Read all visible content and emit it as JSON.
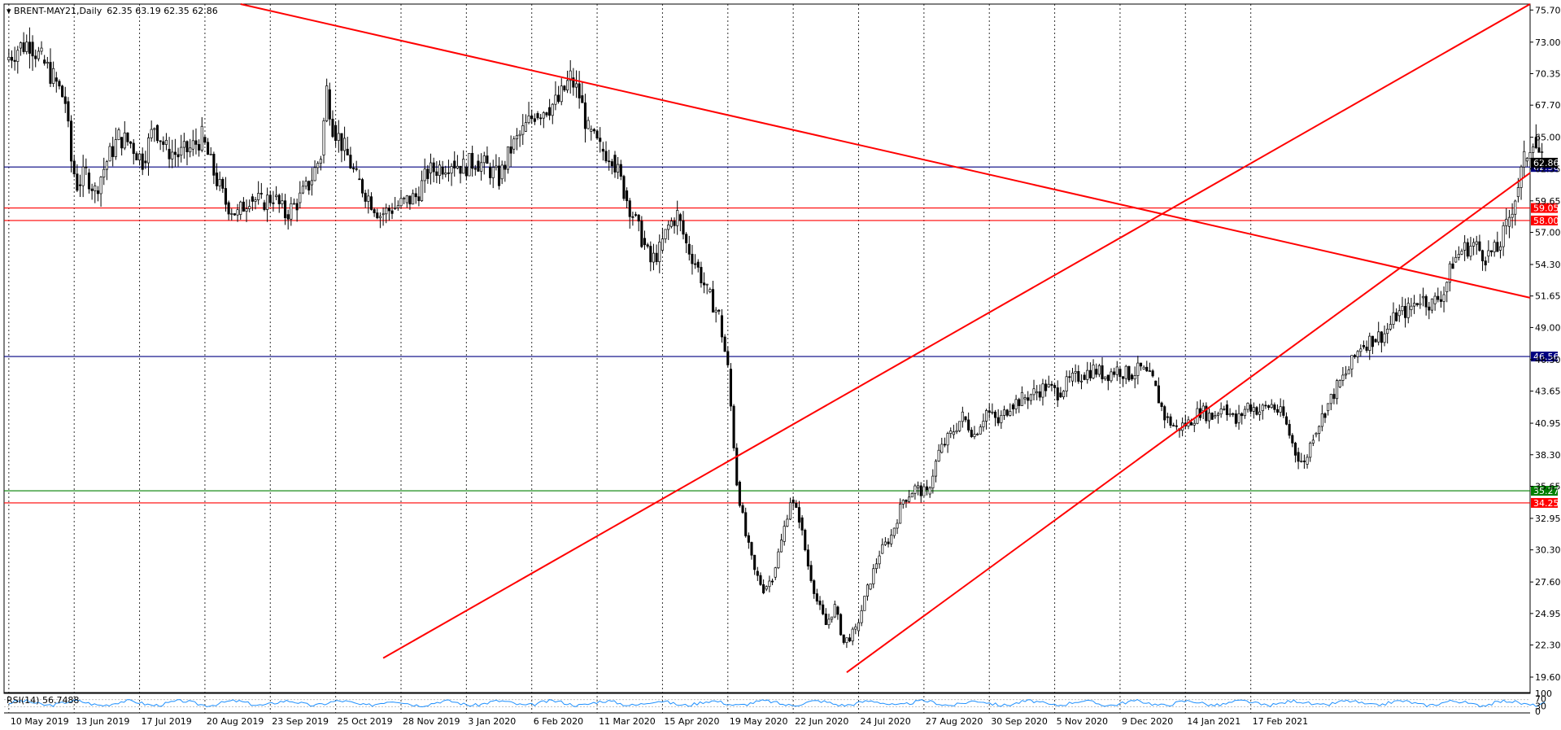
{
  "header": {
    "symbol": "BRENT-MAY21,Daily",
    "ohlc": "62.35 63.19 62.35 62.86"
  },
  "colors": {
    "background": "#ffffff",
    "candle": "#000000",
    "grid": "#000000",
    "trendline": "#ff0000",
    "blue_level": "#000080",
    "red_level": "#ff0000",
    "green_level": "#008000",
    "rsi_line": "#1e90ff"
  },
  "chart_data": {
    "type": "candlestick",
    "price_range": [
      18.3,
      76.2
    ],
    "y_ticks": [
      "75.70",
      "73.00",
      "70.35",
      "67.70",
      "65.00",
      "62.35",
      "59.65",
      "57.00",
      "54.30",
      "51.65",
      "49.00",
      "46.30",
      "43.65",
      "40.95",
      "38.30",
      "35.65",
      "32.95",
      "30.30",
      "27.60",
      "24.95",
      "22.30",
      "19.60"
    ],
    "x_labels": [
      "10 May 2019",
      "13 Jun 2019",
      "17 Jul 2019",
      "20 Aug 2019",
      "23 Sep 2019",
      "25 Oct 2019",
      "28 Nov 2019",
      "3 Jan 2020",
      "6 Feb 2020",
      "11 Mar 2020",
      "15 Apr 2020",
      "19 May 2020",
      "22 Jun 2020",
      "24 Jul 2020",
      "27 Aug 2020",
      "30 Sep 2020",
      "5 Nov 2020",
      "9 Dec 2020",
      "14 Jan 2021",
      "17 Feb 2021"
    ],
    "x_label_months": [
      0,
      1.1,
      2.2,
      3.3,
      4.4,
      5.5,
      6.6,
      7.7,
      8.8,
      9.9,
      11.0,
      12.1,
      13.2,
      14.3,
      15.4,
      16.5,
      17.6,
      18.7,
      19.8,
      20.9
    ],
    "x_range_months": [
      -0.08,
      25.6
    ],
    "closes": [
      [
        0,
        71.5
      ],
      [
        0.2,
        72.5
      ],
      [
        0.4,
        73.0
      ],
      [
        0.6,
        71.5
      ],
      [
        0.8,
        70.0
      ],
      [
        1.0,
        68.0
      ],
      [
        1.1,
        63.0
      ],
      [
        1.2,
        61.0
      ],
      [
        1.35,
        62.0
      ],
      [
        1.5,
        60.5
      ],
      [
        1.7,
        63.0
      ],
      [
        1.9,
        65.0
      ],
      [
        2.1,
        64.5
      ],
      [
        2.3,
        63.0
      ],
      [
        2.5,
        66.0
      ],
      [
        2.7,
        64.0
      ],
      [
        2.9,
        63.5
      ],
      [
        3.1,
        64.0
      ],
      [
        3.3,
        65.0
      ],
      [
        3.5,
        62.0
      ],
      [
        3.7,
        59.5
      ],
      [
        3.9,
        58.5
      ],
      [
        4.1,
        60.0
      ],
      [
        4.3,
        59.5
      ],
      [
        4.5,
        60.0
      ],
      [
        4.7,
        58.5
      ],
      [
        4.9,
        59.5
      ],
      [
        5.1,
        61.0
      ],
      [
        5.3,
        63.5
      ],
      [
        5.4,
        69.0
      ],
      [
        5.5,
        66.0
      ],
      [
        5.7,
        64.0
      ],
      [
        5.9,
        61.5
      ],
      [
        6.1,
        60.0
      ],
      [
        6.3,
        58.5
      ],
      [
        6.5,
        59.0
      ],
      [
        6.7,
        59.5
      ],
      [
        6.9,
        60.0
      ],
      [
        7.1,
        62.0
      ],
      [
        7.3,
        62.5
      ],
      [
        7.5,
        63.0
      ],
      [
        7.7,
        62.5
      ],
      [
        7.9,
        63.0
      ],
      [
        8.1,
        62.5
      ],
      [
        8.3,
        61.5
      ],
      [
        8.5,
        64.0
      ],
      [
        8.7,
        65.5
      ],
      [
        8.9,
        67.0
      ],
      [
        9.1,
        67.5
      ],
      [
        9.3,
        68.0
      ],
      [
        9.5,
        70.0
      ],
      [
        9.65,
        68.5
      ],
      [
        9.8,
        65.5
      ],
      [
        10.0,
        64.0
      ],
      [
        10.2,
        63.5
      ],
      [
        10.4,
        60.5
      ],
      [
        10.55,
        58.5
      ],
      [
        10.7,
        56.5
      ],
      [
        10.85,
        54.5
      ],
      [
        11.0,
        55.5
      ],
      [
        11.15,
        57.5
      ],
      [
        11.3,
        58.5
      ],
      [
        11.45,
        56.0
      ],
      [
        11.6,
        54.5
      ],
      [
        11.8,
        52.0
      ],
      [
        12.0,
        50.0
      ],
      [
        12.15,
        45.5
      ],
      [
        12.3,
        36.0
      ],
      [
        12.45,
        31.5
      ],
      [
        12.6,
        28.5
      ],
      [
        12.75,
        27.0
      ],
      [
        12.9,
        28.0
      ],
      [
        13.05,
        31.0
      ],
      [
        13.2,
        34.5
      ],
      [
        13.35,
        33.0
      ],
      [
        13.5,
        29.0
      ],
      [
        13.65,
        26.0
      ],
      [
        13.8,
        24.0
      ],
      [
        13.95,
        25.5
      ],
      [
        14.1,
        22.5
      ],
      [
        14.3,
        23.5
      ],
      [
        14.5,
        27.0
      ],
      [
        14.7,
        30.0
      ],
      [
        14.9,
        31.5
      ],
      [
        15.1,
        34.5
      ],
      [
        15.3,
        35.5
      ],
      [
        15.5,
        35.0
      ],
      [
        15.7,
        38.5
      ],
      [
        15.9,
        40.0
      ],
      [
        16.1,
        41.5
      ],
      [
        16.3,
        40.0
      ],
      [
        16.5,
        42.0
      ],
      [
        16.7,
        41.0
      ],
      [
        16.9,
        42.5
      ],
      [
        17.1,
        43.0
      ],
      [
        17.3,
        43.5
      ],
      [
        17.5,
        44.0
      ],
      [
        17.7,
        43.5
      ],
      [
        17.9,
        44.5
      ],
      [
        18.1,
        45.0
      ],
      [
        18.3,
        45.5
      ],
      [
        18.5,
        45.0
      ],
      [
        18.7,
        45.5
      ],
      [
        18.9,
        45.0
      ],
      [
        19.1,
        45.5
      ],
      [
        19.3,
        44.5
      ],
      [
        19.5,
        41.5
      ],
      [
        19.7,
        40.5
      ],
      [
        19.9,
        41.0
      ],
      [
        20.1,
        42.0
      ],
      [
        20.3,
        41.5
      ],
      [
        20.5,
        42.5
      ],
      [
        20.7,
        41.0
      ],
      [
        20.9,
        42.5
      ],
      [
        21.1,
        42.0
      ],
      [
        21.3,
        42.5
      ],
      [
        21.5,
        41.5
      ],
      [
        21.7,
        38.5
      ],
      [
        21.85,
        37.5
      ],
      [
        22.0,
        40.0
      ],
      [
        22.2,
        42.0
      ],
      [
        22.4,
        44.0
      ],
      [
        22.6,
        45.5
      ],
      [
        22.8,
        47.5
      ],
      [
        23.0,
        48.0
      ],
      [
        23.2,
        48.5
      ],
      [
        23.4,
        50.0
      ],
      [
        23.6,
        50.5
      ],
      [
        23.8,
        51.5
      ],
      [
        24.0,
        51.0
      ],
      [
        24.2,
        52.0
      ],
      [
        24.35,
        54.5
      ],
      [
        24.5,
        55.5
      ],
      [
        24.7,
        56.0
      ],
      [
        24.9,
        55.0
      ],
      [
        25.1,
        55.5
      ],
      [
        25.25,
        57.5
      ],
      [
        25.4,
        60.0
      ],
      [
        25.55,
        63.0
      ],
      [
        25.7,
        65.0
      ],
      [
        25.85,
        63.0
      ]
    ],
    "levels": [
      {
        "price": 62.5,
        "label": "62.50",
        "color": "#000080"
      },
      {
        "price": 59.05,
        "label": "59.05",
        "color": "#ff0000"
      },
      {
        "price": 58.0,
        "label": "58.00",
        "color": "#ff0000"
      },
      {
        "price": 46.56,
        "label": "46.56",
        "color": "#000080"
      },
      {
        "price": 35.27,
        "label": "35.27",
        "color": "#008000"
      },
      {
        "price": 34.25,
        "label": "34.25",
        "color": "#ff0000"
      }
    ],
    "current_price": {
      "price": 62.86,
      "label": "62.86"
    },
    "trendlines": [
      {
        "name": "descending",
        "from": [
          3.9,
          76.2
        ],
        "to": [
          25.6,
          51.5
        ]
      },
      {
        "name": "channel-upper",
        "from": [
          6.3,
          21.2
        ],
        "to": [
          25.6,
          76.2
        ]
      },
      {
        "name": "channel-lower",
        "from": [
          14.1,
          20.0
        ],
        "to": [
          25.6,
          62.0
        ]
      }
    ],
    "rsi": {
      "label": "RSI(14) 56.7488",
      "ticks": [
        "100",
        "70",
        "30",
        "0"
      ]
    }
  }
}
